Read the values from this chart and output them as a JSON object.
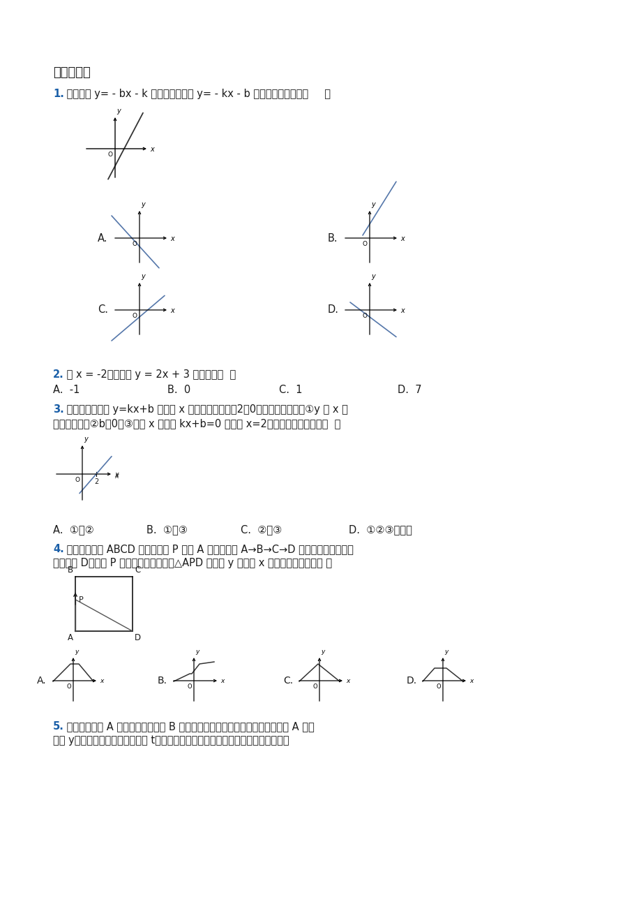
{
  "bg_color": "#ffffff",
  "page_width": 9.2,
  "page_height": 13.02,
  "section_title": "一、选择题",
  "q1_text_blue": "1.",
  "q1_text_rest": " 一次函数 y= - bx - k 的图象如下，则 y= - kx - b 的图象大致位置是（     ）",
  "q2_text_blue": "2.",
  "q2_text_rest": " 当 x = -2时，函数 y = 2x + 3 的值等于（  ）",
  "q2_opts": [
    "A.  -1",
    "B.  0",
    "C.  1",
    "D.  7"
  ],
  "q3_text_blue": "3.",
  "q3_text_rest1": " 如图，一次函数 y=kx+b 图象与 x 轴的交点坐标是（2，0），则下列说法：①y 随 x 的",
  "q3_text_rest2": "增大而减小；②b＞0；③关于 x 的方程 kx+b=0 的解为 x=2．其中说法正确的是（  ）",
  "q3_opts": [
    "A.  ①和②",
    "B.  ①和③",
    "C.  ②和③",
    "D.  ①②③都正确"
  ],
  "q4_text_blue": "4.",
  "q4_text_rest1": " 如图，在矩形 ABCD 中，一动点 P 从点 A 出发，沿着 A→B→C→D 的方向匀速运动，最",
  "q4_text_rest2": "后到达点 D，则点 P 在匀速运动过程中，△APD 的面积 y 随时间 x 变化的图象大致是（ ）",
  "q4_opts_labels": [
    "A.",
    "B.",
    "C.",
    "D."
  ],
  "q5_text_blue": "5.",
  "q5_text_rest1": " 甲、乙两车从 A 城出发匀速行驶至 B 城．在整个行驶过程中，甲、乙两车离开 A 城的",
  "q5_text_rest2": "距离 y（千米）与甲车行驶的时间 t（小时）之间的函数关系如图所示，则下列结论：",
  "blue_color": "#1a5fa8",
  "black_color": "#1a1a1a",
  "line_color_dark": "#333333",
  "line_color_blue": "#5577aa"
}
